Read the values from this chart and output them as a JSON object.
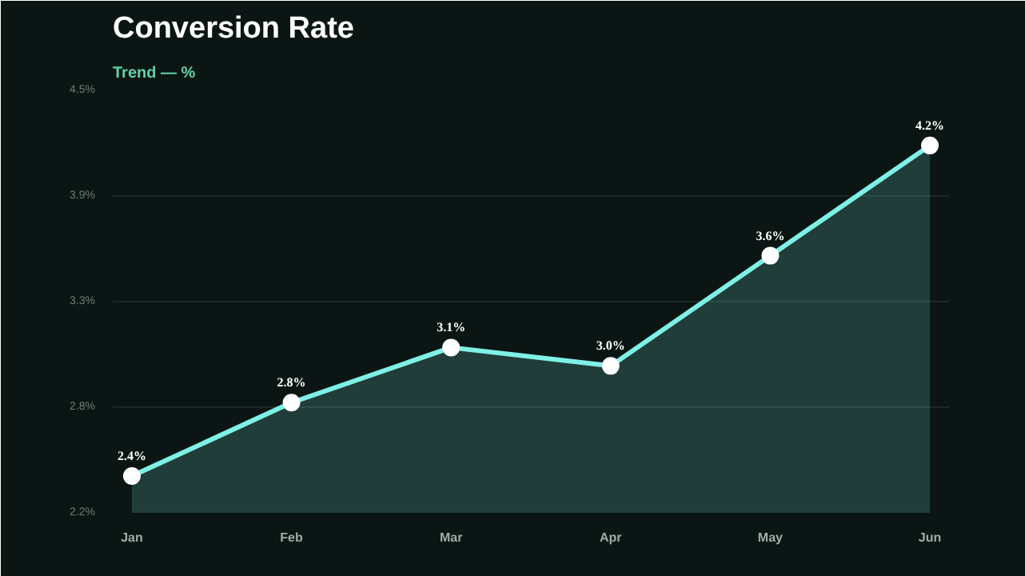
{
  "chart_data": {
    "type": "area",
    "title": "Conversion Rate",
    "subtitle": "Trend — %",
    "categories": [
      "Jan",
      "Feb",
      "Mar",
      "Apr",
      "May",
      "Jun"
    ],
    "series": [
      {
        "color": "#7ff0e6",
        "values": [
          2.4,
          2.8,
          3.1,
          3.0,
          3.6,
          4.2
        ],
        "value_labels": [
          "2.4%",
          "2.8%",
          "3.1%",
          "3.0%",
          "3.6%",
          "4.2%"
        ]
      }
    ],
    "ylim": [
      2.2,
      4.5
    ],
    "yticks": [
      {
        "value": 2.2,
        "label": "2.2%"
      },
      {
        "value": 2.775,
        "label": "2.8%"
      },
      {
        "value": 3.35,
        "label": "3.3%"
      },
      {
        "value": 3.925,
        "label": "3.9%"
      },
      {
        "value": 4.5,
        "label": "4.5%"
      }
    ],
    "grid": "y",
    "marker": "circle",
    "line_style": "solid"
  }
}
